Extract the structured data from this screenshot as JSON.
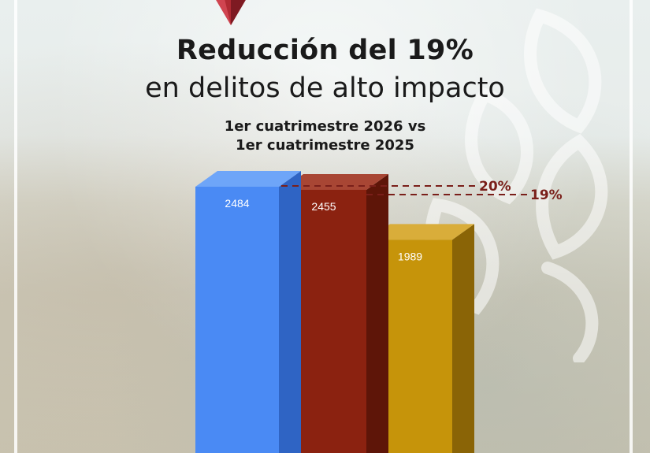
{
  "header": {
    "title_line1": "Reducción del 19%",
    "title_line2": "en delitos de alto impacto",
    "subtitle_line1": "1er cuatrimestre 2026 vs",
    "subtitle_line2": "1er cuatrimestre 2025"
  },
  "colors": {
    "blue": "#4a8af4",
    "red": "#8b2210",
    "gold": "#c6940a",
    "accent": "#7a1f1a",
    "logo": "#b02a33"
  },
  "chart_data": {
    "type": "bar",
    "categories": [
      "",
      "",
      ""
    ],
    "values": [
      2484,
      2455,
      1989
    ],
    "value_labels": [
      "2484",
      "2455",
      "1989"
    ],
    "annotations": [
      "20%",
      "19%"
    ],
    "ylim": [
      0,
      3000
    ],
    "grid": false,
    "legend": "none"
  }
}
